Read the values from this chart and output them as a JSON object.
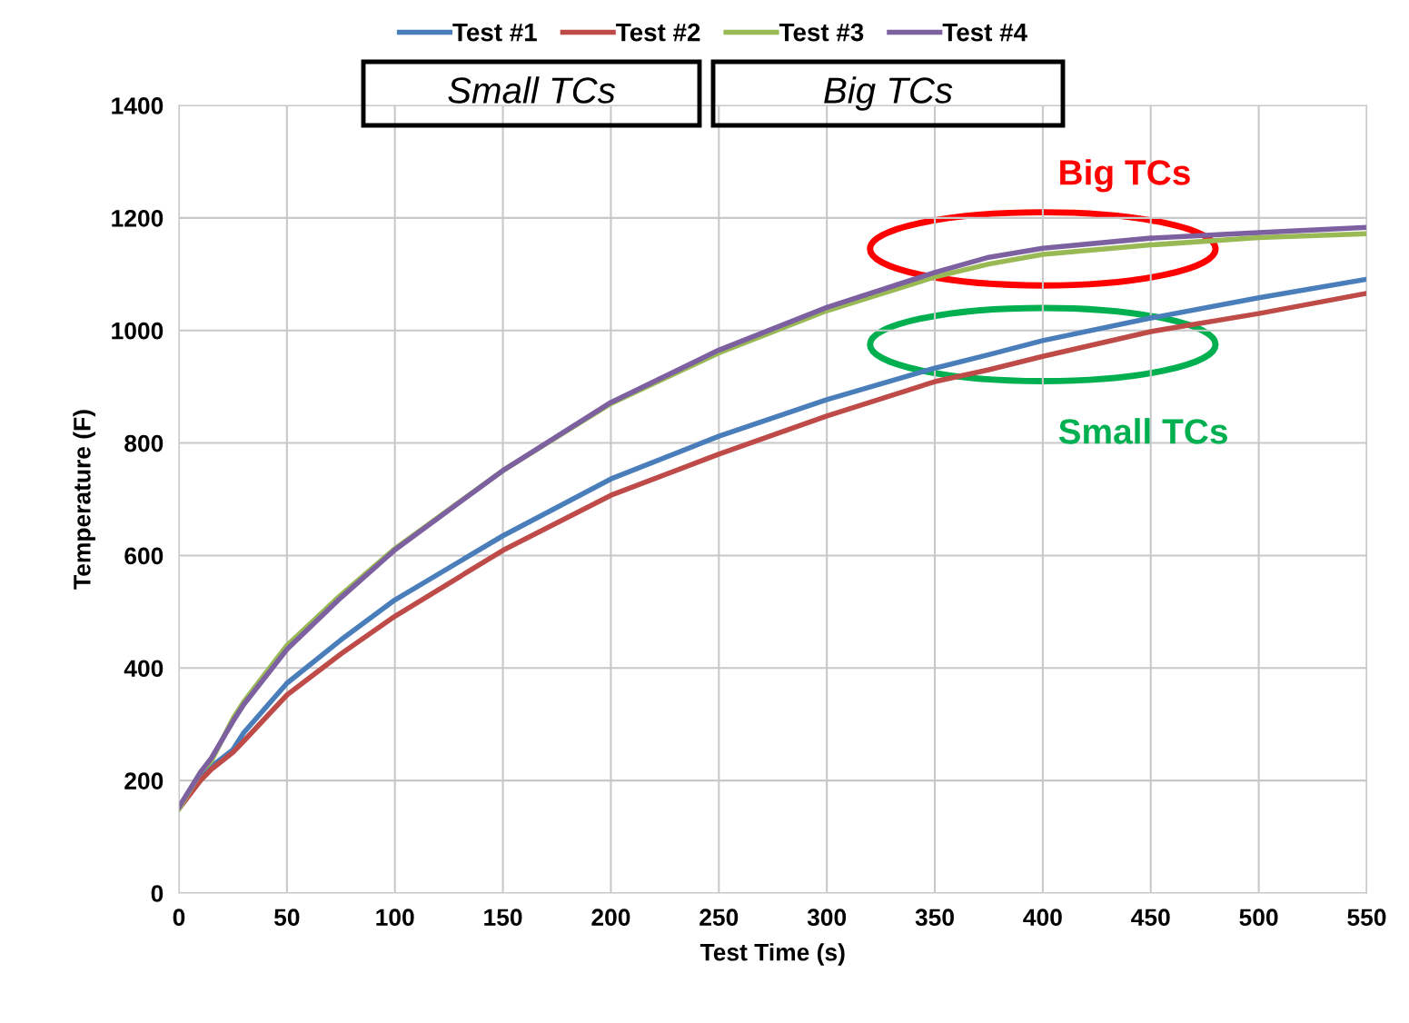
{
  "chart_data": {
    "type": "line",
    "xlabel": "Test Time (s)",
    "ylabel": "Temperature (F)",
    "x": [
      0,
      10,
      15,
      25,
      30,
      50,
      75,
      100,
      150,
      200,
      250,
      300,
      350,
      375,
      400,
      450,
      500,
      550
    ],
    "series": [
      {
        "name": "Test #1",
        "color": "#4a7ebb",
        "values": [
          150,
          205,
          225,
          255,
          285,
          373,
          450,
          521,
          635,
          736,
          812,
          877,
          933,
          957,
          982,
          1022,
          1058,
          1091
        ]
      },
      {
        "name": "Test #2",
        "color": "#be4b48",
        "values": [
          150,
          200,
          220,
          250,
          270,
          352,
          425,
          492,
          609,
          707,
          780,
          848,
          909,
          930,
          954,
          998,
          1030,
          1066
        ]
      },
      {
        "name": "Test #3",
        "color": "#98b954",
        "values": [
          150,
          215,
          235,
          310,
          340,
          440,
          530,
          612,
          751,
          870,
          960,
          1035,
          1095,
          1118,
          1135,
          1152,
          1165,
          1172
        ]
      },
      {
        "name": "Test #4",
        "color": "#7d60a0",
        "values": [
          153,
          215,
          240,
          305,
          335,
          433,
          525,
          610,
          751,
          872,
          965,
          1041,
          1103,
          1130,
          1146,
          1164,
          1174,
          1183
        ]
      }
    ],
    "xlim": [
      0,
      550
    ],
    "xticks": [
      0,
      50,
      100,
      150,
      200,
      250,
      300,
      350,
      400,
      450,
      500,
      550
    ],
    "ylim": [
      0,
      1400
    ],
    "yticks": [
      0,
      200,
      400,
      600,
      800,
      1000,
      1200,
      1400
    ],
    "grid": true,
    "legend": "top",
    "marker": "none",
    "line_style": "solid",
    "annotations": [
      "Small TCs",
      "Big TCs",
      {
        "text": "Big TCs",
        "x": 400,
        "y": 1145
      },
      {
        "text": "Small TCs",
        "x": 400,
        "y": 975
      }
    ]
  }
}
